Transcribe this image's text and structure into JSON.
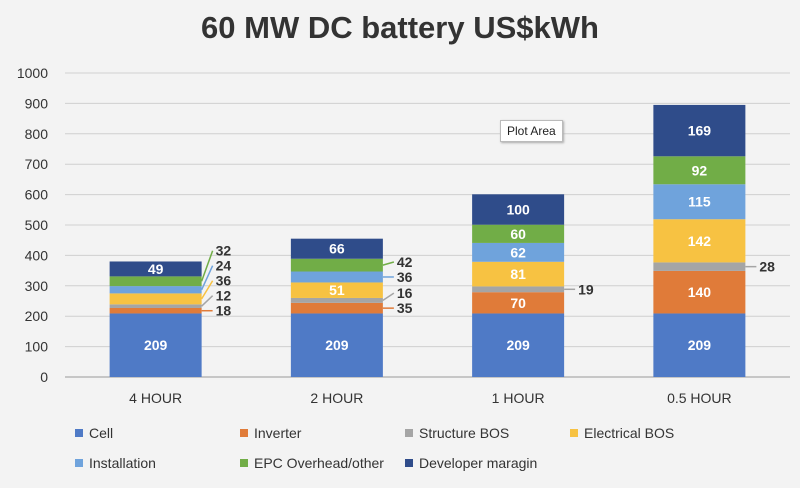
{
  "chart_data": {
    "type": "bar",
    "stacked": true,
    "title": "60 MW DC battery US$kWh",
    "categories": [
      "4 HOUR",
      "2 HOUR",
      "1 HOUR",
      "0.5 HOUR"
    ],
    "ylim": [
      0,
      1000
    ],
    "yticks": [
      0,
      100,
      200,
      300,
      400,
      500,
      600,
      700,
      800,
      900,
      1000
    ],
    "grid": true,
    "legend": "bottom",
    "series": [
      {
        "name": "Cell",
        "color": "#4f7ac6",
        "values": [
          209,
          209,
          209,
          209
        ]
      },
      {
        "name": "Inverter",
        "color": "#e07b39",
        "values": [
          18,
          35,
          70,
          140
        ]
      },
      {
        "name": "Structure BOS",
        "color": "#a5a5a5",
        "values": [
          12,
          16,
          19,
          28
        ]
      },
      {
        "name": "Electrical BOS",
        "color": "#f7c242",
        "values": [
          36,
          51,
          81,
          142
        ]
      },
      {
        "name": "Installation",
        "color": "#6fa3dc",
        "values": [
          24,
          36,
          62,
          115
        ]
      },
      {
        "name": "EPC Overhead/other",
        "color": "#71ad47",
        "values": [
          32,
          42,
          60,
          92
        ]
      },
      {
        "name": "Developer maragin",
        "color": "#2f4c8a",
        "values": [
          49,
          66,
          100,
          169
        ]
      }
    ]
  },
  "tooltip": "Plot Area"
}
